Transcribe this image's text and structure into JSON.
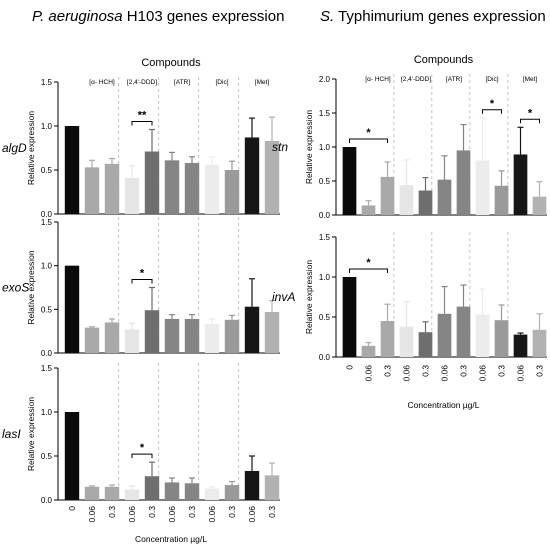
{
  "left_heading": {
    "species": "P. aeruginosa",
    "rest": " H103 genes expression"
  },
  "right_heading": {
    "species": "S.",
    "rest": " Typhimurium genes expression"
  },
  "colors": {
    "control": "#0a0a0a",
    "hch": "#a9a9a9",
    "ddd_low": "#e6e6e6",
    "ddd_high": "#6e6e6e",
    "atr": "#858585",
    "dic_low": "#ececec",
    "dic_high": "#9a9a9a",
    "met_low": "#161616",
    "met_high": "#b2b2b2"
  },
  "chart_data": [
    {
      "type": "bar",
      "panel": "pa-algd",
      "gene": "algD",
      "compounds_title": "Compounds",
      "groups": [
        "[α- HCH]",
        "[2,4'-DDD]",
        "[ATR]",
        "[Dic]",
        "[Met]"
      ],
      "categories": [
        "0",
        "0.06",
        "0.3",
        "0.06",
        "0.3",
        "0.06",
        "0.3",
        "0.06",
        "0.3",
        "0.06",
        "0.3"
      ],
      "values": [
        1.0,
        0.53,
        0.57,
        0.41,
        0.71,
        0.61,
        0.58,
        0.56,
        0.5,
        0.87,
        0.83
      ],
      "errors": [
        0,
        0.08,
        0.06,
        0.14,
        0.25,
        0.09,
        0.07,
        0.09,
        0.1,
        0.22,
        0.27
      ],
      "ylabel": "Relative expression",
      "ylim": [
        0,
        1.5
      ],
      "yticks": [
        "0.0",
        "0.5",
        "1.0",
        "1.5"
      ],
      "significance": [
        {
          "from": 3,
          "to": 4,
          "label": "**"
        }
      ]
    },
    {
      "type": "bar",
      "panel": "pa-exos",
      "gene": "exoS",
      "categories": [
        "0",
        "0.06",
        "0.3",
        "0.06",
        "0.3",
        "0.06",
        "0.3",
        "0.06",
        "0.3",
        "0.06",
        "0.3"
      ],
      "values": [
        1.0,
        0.29,
        0.35,
        0.27,
        0.49,
        0.39,
        0.39,
        0.33,
        0.38,
        0.53,
        0.47
      ],
      "errors": [
        0,
        0.01,
        0.04,
        0.07,
        0.26,
        0.05,
        0.05,
        0.06,
        0.05,
        0.32,
        0.13
      ],
      "ylabel": "Relative expression",
      "ylim": [
        0,
        1.5
      ],
      "yticks": [
        "0.0",
        "0.5",
        "1.0",
        "1.5"
      ],
      "significance": [
        {
          "from": 3,
          "to": 4,
          "label": "*"
        }
      ]
    },
    {
      "type": "bar",
      "panel": "pa-lasi",
      "gene": "lasI",
      "categories": [
        "0",
        "0.06",
        "0.3",
        "0.06",
        "0.3",
        "0.06",
        "0.3",
        "0.06",
        "0.3",
        "0.06",
        "0.3"
      ],
      "values": [
        1.0,
        0.15,
        0.15,
        0.12,
        0.27,
        0.2,
        0.19,
        0.13,
        0.17,
        0.33,
        0.28
      ],
      "errors": [
        0,
        0.01,
        0.02,
        0.04,
        0.16,
        0.05,
        0.06,
        0.02,
        0.04,
        0.17,
        0.14
      ],
      "ylabel": "Relative expression",
      "ylim": [
        0,
        1.5
      ],
      "yticks": [
        "0.0",
        "0.5",
        "1.0",
        "1.5"
      ],
      "xlabel": "Concentration µg/L",
      "significance": [
        {
          "from": 3,
          "to": 4,
          "label": "*"
        }
      ]
    },
    {
      "type": "bar",
      "panel": "st-stn",
      "gene": "stn",
      "compounds_title": "Compounds",
      "groups": [
        "[α- HCH]",
        "[2,4'-DDD]",
        "[ATR]",
        "[Dic]",
        "[Met]"
      ],
      "categories": [
        "0",
        "0.06",
        "0.3",
        "0.06",
        "0.3",
        "0.06",
        "0.3",
        "0.06",
        "0.3",
        "0.06",
        "0.3"
      ],
      "values": [
        1.0,
        0.14,
        0.56,
        0.44,
        0.36,
        0.52,
        0.95,
        0.8,
        0.43,
        0.89,
        0.27
      ],
      "errors": [
        0,
        0.07,
        0.22,
        0.37,
        0.19,
        0.35,
        0.38,
        0.63,
        0.22,
        0.4,
        0.22
      ],
      "ylabel": "Relative expression",
      "ylim": [
        0,
        2.0
      ],
      "yticks": [
        "0.0",
        "0.5",
        "1.0",
        "1.5",
        "2.0"
      ],
      "significance": [
        {
          "from": 0,
          "to": 2,
          "label": "*"
        },
        {
          "from": 7,
          "to": 8,
          "label": "*"
        },
        {
          "from": 9,
          "to": 10,
          "label": "*"
        }
      ]
    },
    {
      "type": "bar",
      "panel": "st-inva",
      "gene": "invA",
      "categories": [
        "0",
        "0.06",
        "0.3",
        "0.06",
        "0.3",
        "0.06",
        "0.3",
        "0.06",
        "0.3",
        "0.06",
        "0.3"
      ],
      "values": [
        1.0,
        0.14,
        0.45,
        0.38,
        0.31,
        0.54,
        0.63,
        0.53,
        0.46,
        0.28,
        0.34
      ],
      "errors": [
        0,
        0.04,
        0.21,
        0.31,
        0.13,
        0.34,
        0.27,
        0.32,
        0.19,
        0.02,
        0.2
      ],
      "ylabel": "Relative expression",
      "ylim": [
        0,
        1.5
      ],
      "yticks": [
        "0.0",
        "0.5",
        "1.0",
        "1.5"
      ],
      "xlabel": "Concentration µg/L",
      "significance": [
        {
          "from": 0,
          "to": 2,
          "label": "*"
        }
      ]
    }
  ]
}
